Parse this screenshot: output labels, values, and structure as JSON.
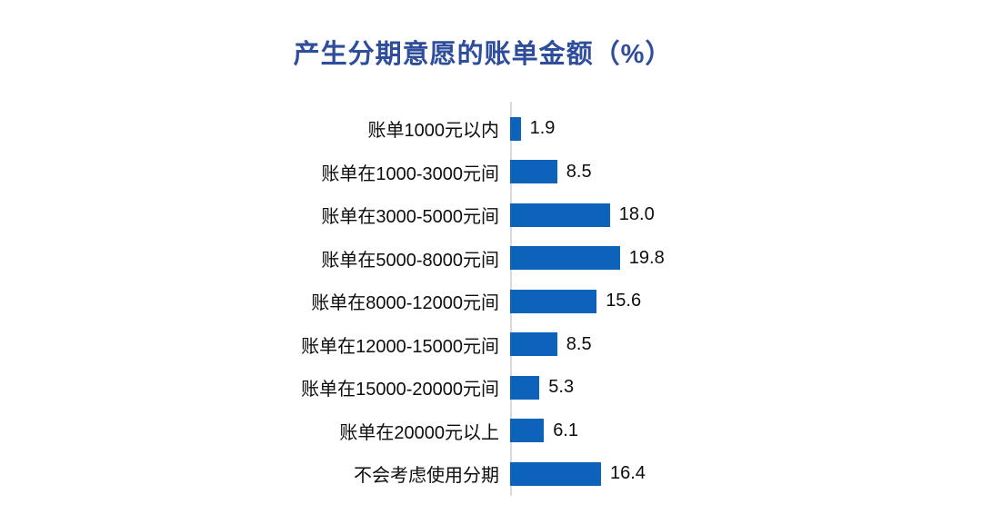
{
  "chart_data": {
    "type": "bar",
    "orientation": "horizontal",
    "title": "产生分期意愿的账单金额（%）",
    "categories": [
      "账单1000元以内",
      "账单在1000-3000元间",
      "账单在3000-5000元间",
      "账单在5000-8000元间",
      "账单在8000-12000元间",
      "账单在12000-15000元间",
      "账单在15000-20000元间",
      "账单在20000元以上",
      "不会考虑使用分期"
    ],
    "values": [
      1.9,
      8.5,
      18.0,
      19.8,
      15.6,
      8.5,
      5.3,
      6.1,
      16.4
    ],
    "value_labels": [
      "1.9",
      "8.5",
      "18.0",
      "19.8",
      "15.6",
      "8.5",
      "5.3",
      "6.1",
      "16.4"
    ],
    "xlabel": "",
    "ylabel": "",
    "xlim": [
      0,
      21
    ],
    "grid": false,
    "legend": false,
    "data_labels_position": "outside-end",
    "colors": {
      "bar": "#0D62BA",
      "title": "#2E4D9B",
      "axis_line": "#D9D9D9",
      "category_label": "#0d0d0d",
      "value_label": "#0d0d0d",
      "background": "#ffffff"
    }
  }
}
